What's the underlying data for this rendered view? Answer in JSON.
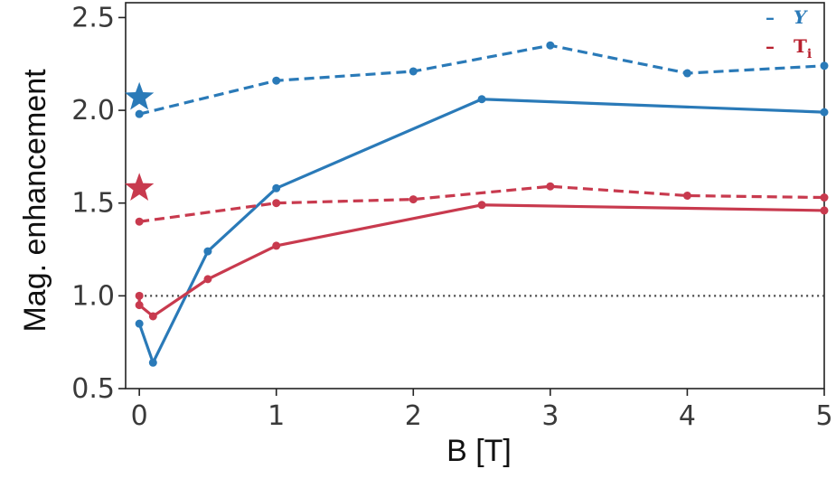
{
  "chart_data": {
    "type": "line",
    "title": "",
    "xlabel": "B [T]",
    "ylabel": "Mag. enhancement",
    "xlim": [
      -0.1,
      5.0
    ],
    "ylim": [
      0.5,
      2.58
    ],
    "x_ticks": [
      0,
      1,
      2,
      3,
      4,
      5
    ],
    "y_ticks": [
      0.5,
      1.0,
      1.5,
      2.0,
      2.5
    ],
    "x_tick_labels": [
      "0",
      "1",
      "2",
      "3",
      "4",
      "5"
    ],
    "y_tick_labels": [
      "0.5",
      "1.0",
      "1.5",
      "2.0",
      "2.5"
    ],
    "grid": false,
    "legend_position": "top-right",
    "reference_line": {
      "y": 1.0,
      "style": "dotted",
      "color": "#444444"
    },
    "series": [
      {
        "name": "Y",
        "legend_label": "Y",
        "color": "#2a7ab8",
        "style": "dashed",
        "x": [
          0,
          1,
          2,
          3,
          4,
          5
        ],
        "y": [
          1.98,
          2.16,
          2.21,
          2.35,
          2.2,
          2.24
        ],
        "star": {
          "x": 0,
          "y": 2.07
        }
      },
      {
        "color": "#2a7ab8",
        "style": "solid",
        "x": [
          0,
          0.1,
          0.5,
          1,
          2.5,
          5
        ],
        "y": [
          0.85,
          0.64,
          1.24,
          1.58,
          2.06,
          1.99
        ]
      },
      {
        "name": "Ti",
        "legend_label": "T",
        "legend_sub": "i",
        "color": "#c83a4e",
        "style": "dashed",
        "x": [
          0,
          1,
          2,
          3,
          4,
          5
        ],
        "y": [
          1.4,
          1.5,
          1.52,
          1.59,
          1.54,
          1.53
        ],
        "star": {
          "x": 0,
          "y": 1.58
        }
      },
      {
        "color": "#c83a4e",
        "style": "solid",
        "x": [
          0,
          0,
          0.1,
          0.5,
          1,
          2.5,
          5
        ],
        "y": [
          1.0,
          0.95,
          0.89,
          1.09,
          1.27,
          1.49,
          1.46
        ]
      }
    ]
  },
  "legend": {
    "dash": "–"
  }
}
